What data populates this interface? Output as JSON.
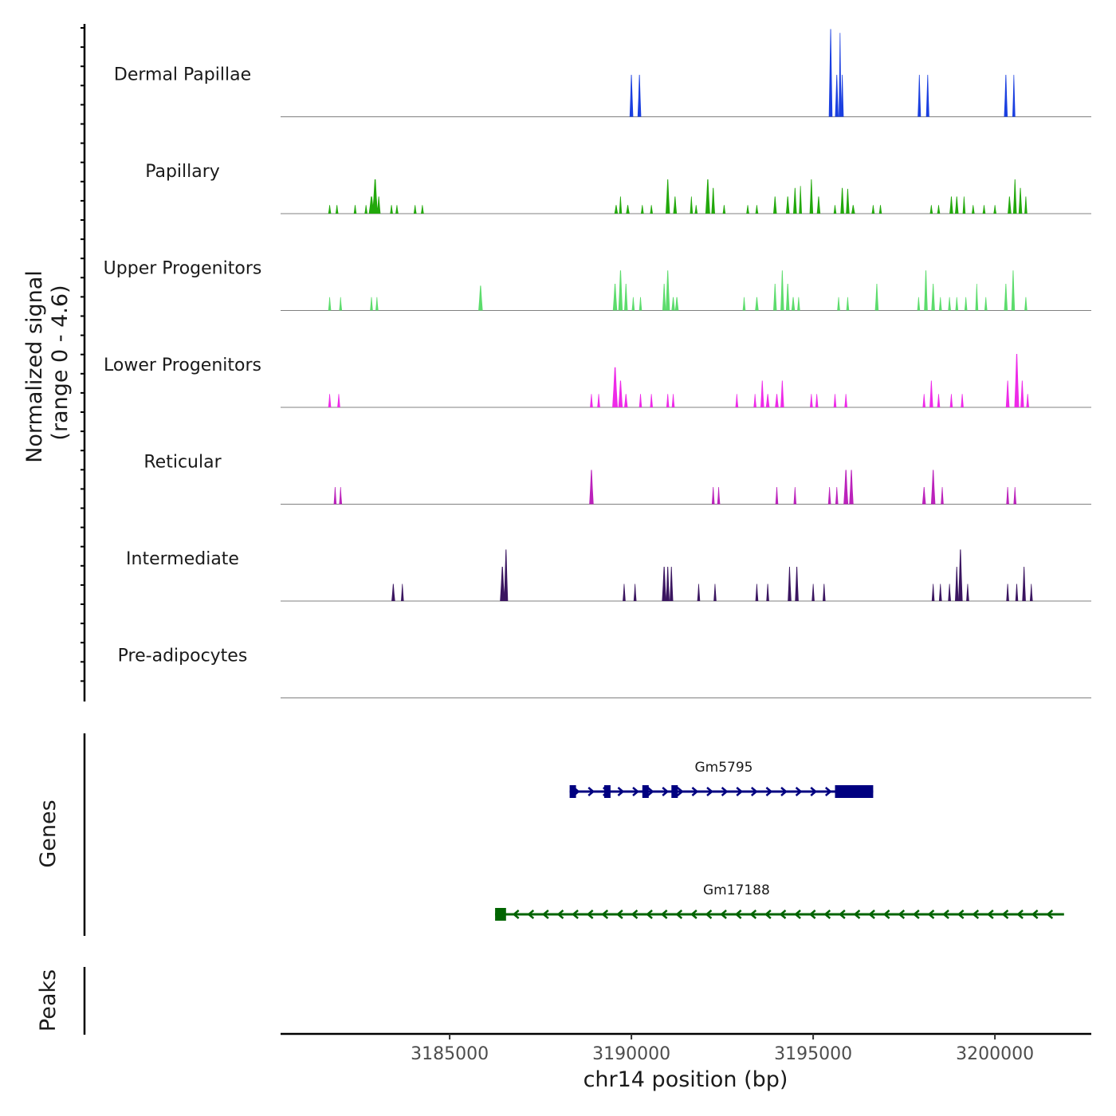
{
  "chart_data": {
    "type": "area",
    "title": "",
    "ylabel_line1": "Normalized signal",
    "ylabel_line2": "(range 0 - 4.6)",
    "xlabel": "chr14 position (bp)",
    "xlim": [
      3180350,
      3202650
    ],
    "ylim": [
      0,
      4.6
    ],
    "xticks": [
      3185000,
      3190000,
      3195000,
      3200000
    ],
    "xtick_labels": [
      "3185000",
      "3190000",
      "3195000",
      "3200000"
    ],
    "tracks": [
      {
        "name": "Dermal Papillae",
        "color": "#1a3fe0",
        "peaks": [
          [
            3190000,
            2.2,
            100
          ],
          [
            3190220,
            2.2,
            100
          ],
          [
            3195480,
            4.6,
            100
          ],
          [
            3195650,
            2.2,
            100
          ],
          [
            3195740,
            4.4,
            70
          ],
          [
            3195800,
            2.2,
            80
          ],
          [
            3197920,
            2.2,
            90
          ],
          [
            3198150,
            2.2,
            90
          ],
          [
            3200300,
            2.2,
            100
          ],
          [
            3200520,
            2.2,
            80
          ]
        ]
      },
      {
        "name": "Papillary",
        "color": "#22a80b",
        "peaks": [
          [
            3181700,
            0.45,
            80
          ],
          [
            3181900,
            0.45,
            80
          ],
          [
            3182400,
            0.45,
            80
          ],
          [
            3182700,
            0.45,
            80
          ],
          [
            3182850,
            0.9,
            150
          ],
          [
            3182950,
            1.8,
            150
          ],
          [
            3183050,
            0.9,
            100
          ],
          [
            3183400,
            0.45,
            80
          ],
          [
            3183550,
            0.45,
            80
          ],
          [
            3184050,
            0.45,
            80
          ],
          [
            3184250,
            0.45,
            80
          ],
          [
            3189580,
            0.45,
            100
          ],
          [
            3189700,
            0.9,
            80
          ],
          [
            3189900,
            0.45,
            100
          ],
          [
            3190300,
            0.45,
            80
          ],
          [
            3190550,
            0.45,
            80
          ],
          [
            3191000,
            1.8,
            120
          ],
          [
            3191200,
            0.9,
            100
          ],
          [
            3191650,
            0.9,
            80
          ],
          [
            3191780,
            0.45,
            80
          ],
          [
            3192100,
            1.8,
            130
          ],
          [
            3192250,
            1.35,
            100
          ],
          [
            3192550,
            0.45,
            80
          ],
          [
            3193200,
            0.45,
            80
          ],
          [
            3193450,
            0.45,
            80
          ],
          [
            3193950,
            0.9,
            100
          ],
          [
            3194300,
            0.9,
            100
          ],
          [
            3194500,
            1.35,
            100
          ],
          [
            3194650,
            1.45,
            80
          ],
          [
            3194950,
            1.8,
            100
          ],
          [
            3195150,
            0.9,
            100
          ],
          [
            3195600,
            0.45,
            80
          ],
          [
            3195800,
            1.35,
            100
          ],
          [
            3195950,
            1.3,
            100
          ],
          [
            3196100,
            0.45,
            100
          ],
          [
            3196650,
            0.45,
            80
          ],
          [
            3196850,
            0.45,
            80
          ],
          [
            3198250,
            0.45,
            80
          ],
          [
            3198450,
            0.45,
            80
          ],
          [
            3198800,
            0.9,
            100
          ],
          [
            3198950,
            0.9,
            100
          ],
          [
            3199150,
            0.9,
            80
          ],
          [
            3199400,
            0.45,
            80
          ],
          [
            3199700,
            0.45,
            80
          ],
          [
            3200000,
            0.45,
            80
          ],
          [
            3200400,
            0.9,
            100
          ],
          [
            3200550,
            1.8,
            100
          ],
          [
            3200700,
            1.35,
            100
          ],
          [
            3200850,
            0.9,
            80
          ]
        ]
      },
      {
        "name": "Upper Progenitors",
        "color": "#5cdc6c",
        "peaks": [
          [
            3181700,
            0.7,
            80
          ],
          [
            3182000,
            0.7,
            80
          ],
          [
            3182850,
            0.7,
            80
          ],
          [
            3183000,
            0.7,
            80
          ],
          [
            3185850,
            1.3,
            120
          ],
          [
            3189550,
            1.4,
            120
          ],
          [
            3189700,
            2.1,
            120
          ],
          [
            3189850,
            1.4,
            100
          ],
          [
            3190050,
            0.7,
            80
          ],
          [
            3190250,
            0.7,
            80
          ],
          [
            3190900,
            1.4,
            100
          ],
          [
            3191000,
            2.1,
            120
          ],
          [
            3191150,
            0.7,
            100
          ],
          [
            3191250,
            0.7,
            100
          ],
          [
            3193100,
            0.7,
            80
          ],
          [
            3193450,
            0.7,
            100
          ],
          [
            3193950,
            1.4,
            100
          ],
          [
            3194150,
            2.1,
            100
          ],
          [
            3194300,
            1.4,
            100
          ],
          [
            3194450,
            0.7,
            100
          ],
          [
            3194600,
            0.7,
            80
          ],
          [
            3195700,
            0.7,
            80
          ],
          [
            3195950,
            0.7,
            80
          ],
          [
            3196750,
            1.4,
            100
          ],
          [
            3197900,
            0.7,
            80
          ],
          [
            3198100,
            2.1,
            100
          ],
          [
            3198300,
            1.4,
            100
          ],
          [
            3198500,
            0.7,
            80
          ],
          [
            3198750,
            0.7,
            80
          ],
          [
            3198950,
            0.7,
            80
          ],
          [
            3199200,
            0.7,
            80
          ],
          [
            3199500,
            1.4,
            80
          ],
          [
            3199750,
            0.7,
            80
          ],
          [
            3200300,
            1.4,
            100
          ],
          [
            3200500,
            2.1,
            100
          ],
          [
            3200850,
            0.7,
            80
          ]
        ]
      },
      {
        "name": "Lower Progenitors",
        "color": "#ee2ae8",
        "peaks": [
          [
            3181700,
            0.7,
            80
          ],
          [
            3181950,
            0.7,
            80
          ],
          [
            3188900,
            0.7,
            80
          ],
          [
            3189100,
            0.7,
            80
          ],
          [
            3189550,
            2.1,
            150
          ],
          [
            3189700,
            1.4,
            120
          ],
          [
            3189850,
            0.7,
            100
          ],
          [
            3190250,
            0.7,
            80
          ],
          [
            3190550,
            0.7,
            80
          ],
          [
            3191000,
            0.7,
            80
          ],
          [
            3191150,
            0.7,
            80
          ],
          [
            3192900,
            0.7,
            80
          ],
          [
            3193400,
            0.7,
            80
          ],
          [
            3193600,
            1.4,
            100
          ],
          [
            3193750,
            0.7,
            100
          ],
          [
            3194000,
            0.7,
            100
          ],
          [
            3194150,
            1.4,
            100
          ],
          [
            3194950,
            0.7,
            80
          ],
          [
            3195100,
            0.7,
            80
          ],
          [
            3195600,
            0.7,
            80
          ],
          [
            3195900,
            0.7,
            80
          ],
          [
            3198050,
            0.7,
            80
          ],
          [
            3198250,
            1.4,
            100
          ],
          [
            3198450,
            0.7,
            80
          ],
          [
            3198800,
            0.7,
            80
          ],
          [
            3199100,
            0.7,
            80
          ],
          [
            3200350,
            1.4,
            100
          ],
          [
            3200600,
            2.8,
            130
          ],
          [
            3200750,
            1.4,
            100
          ],
          [
            3200900,
            0.7,
            80
          ]
        ]
      },
      {
        "name": "Reticular",
        "color": "#bb22bb",
        "peaks": [
          [
            3181850,
            0.9,
            80
          ],
          [
            3182000,
            0.9,
            80
          ],
          [
            3188900,
            1.8,
            120
          ],
          [
            3192250,
            0.9,
            80
          ],
          [
            3192400,
            0.9,
            80
          ],
          [
            3194000,
            0.9,
            80
          ],
          [
            3194500,
            0.9,
            80
          ],
          [
            3195450,
            0.9,
            80
          ],
          [
            3195650,
            0.9,
            80
          ],
          [
            3195900,
            1.8,
            130
          ],
          [
            3196050,
            1.8,
            120
          ],
          [
            3198050,
            0.9,
            100
          ],
          [
            3198300,
            1.8,
            120
          ],
          [
            3198550,
            0.9,
            80
          ],
          [
            3200350,
            0.9,
            80
          ],
          [
            3200550,
            0.9,
            80
          ]
        ]
      },
      {
        "name": "Intermediate",
        "color": "#3a1560",
        "peaks": [
          [
            3183450,
            0.9,
            100
          ],
          [
            3183700,
            0.9,
            80
          ],
          [
            3186450,
            1.8,
            130
          ],
          [
            3186550,
            2.7,
            110
          ],
          [
            3189800,
            0.9,
            80
          ],
          [
            3190100,
            0.9,
            80
          ],
          [
            3190900,
            1.8,
            120
          ],
          [
            3191000,
            1.8,
            100
          ],
          [
            3191100,
            1.8,
            100
          ],
          [
            3191850,
            0.9,
            80
          ],
          [
            3192300,
            0.9,
            80
          ],
          [
            3193450,
            0.9,
            80
          ],
          [
            3193750,
            0.9,
            80
          ],
          [
            3194350,
            1.8,
            100
          ],
          [
            3194550,
            1.8,
            100
          ],
          [
            3195000,
            0.9,
            80
          ],
          [
            3195300,
            0.9,
            80
          ],
          [
            3198300,
            0.9,
            80
          ],
          [
            3198500,
            0.9,
            80
          ],
          [
            3198750,
            0.9,
            80
          ],
          [
            3198950,
            1.8,
            100
          ],
          [
            3199050,
            2.7,
            120
          ],
          [
            3199250,
            0.9,
            80
          ],
          [
            3200350,
            0.9,
            80
          ],
          [
            3200600,
            0.9,
            80
          ],
          [
            3200800,
            1.8,
            100
          ],
          [
            3201000,
            0.9,
            80
          ]
        ]
      },
      {
        "name": "Pre-adipocytes",
        "color": "#1d2d8a",
        "peaks": []
      }
    ],
    "genes_label": "Genes",
    "peaks_label": "Peaks",
    "genes": [
      {
        "name": "Gm5795",
        "color": "#000080",
        "strand": "+",
        "start": 3188300,
        "end": 3196650,
        "exons": [
          [
            3188300,
            3188420
          ],
          [
            3189250,
            3189380
          ],
          [
            3190300,
            3190430
          ],
          [
            3191100,
            3191260
          ],
          [
            3195600,
            3196650
          ]
        ]
      },
      {
        "name": "Gm17188",
        "color": "#006400",
        "strand": "-",
        "start": 3186250,
        "end": 3201900,
        "exons": [
          [
            3186250,
            3186550
          ]
        ]
      }
    ]
  }
}
